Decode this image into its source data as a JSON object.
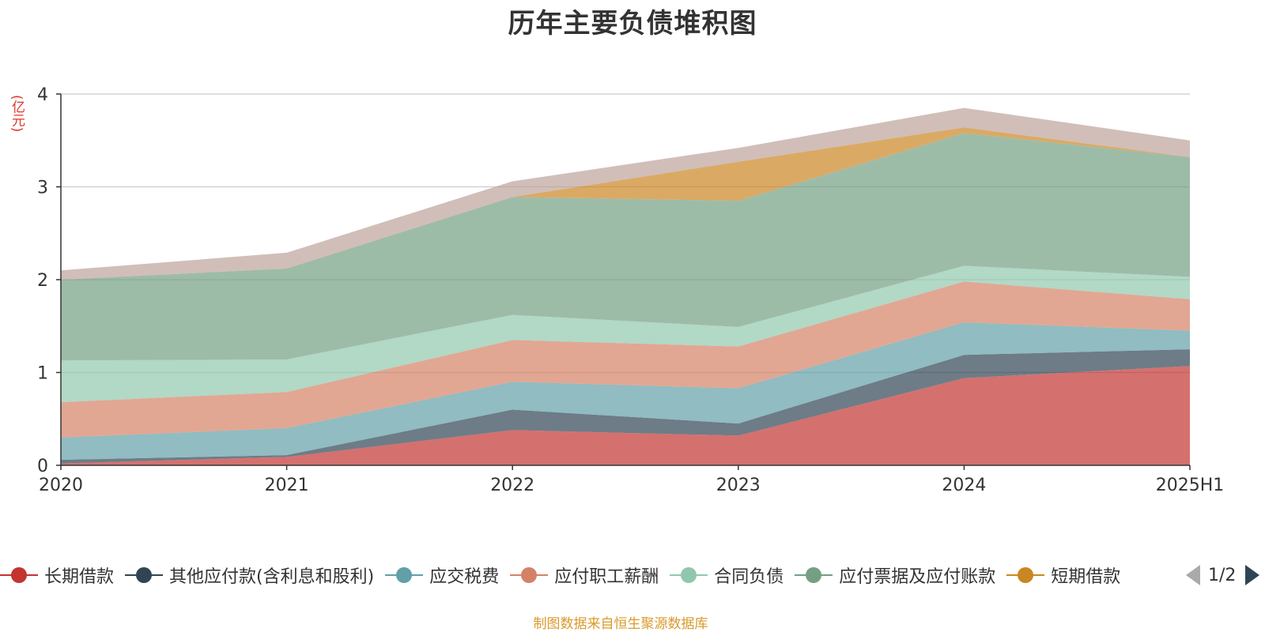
{
  "unit": "(亿元)",
  "source": "制图数据来自恒生聚源数据库",
  "pager": {
    "label": "1/2"
  },
  "chart_data": {
    "type": "area",
    "stacked": true,
    "title": "历年主要负债堆积图",
    "categories": [
      "2020",
      "2021",
      "2022",
      "2023",
      "2024",
      "2025H1"
    ],
    "ylim": [
      0,
      4
    ],
    "yticks": [
      "0",
      "1",
      "2",
      "3",
      "4"
    ],
    "grid": true,
    "legend_position": "bottom",
    "series": [
      {
        "name": "长期借款",
        "color": "#c23531",
        "values": [
          0.02,
          0.09,
          0.38,
          0.32,
          0.94,
          1.07
        ]
      },
      {
        "name": "其他应付款(含利息和股利)",
        "color": "#2f4554",
        "values": [
          0.04,
          0.02,
          0.22,
          0.13,
          0.25,
          0.18
        ]
      },
      {
        "name": "应交税费",
        "color": "#61a0a8",
        "values": [
          0.24,
          0.29,
          0.3,
          0.38,
          0.35,
          0.2
        ]
      },
      {
        "name": "应付职工薪酬",
        "color": "#d48265",
        "values": [
          0.38,
          0.39,
          0.45,
          0.45,
          0.44,
          0.34
        ]
      },
      {
        "name": "合同负债",
        "color": "#91c7ae",
        "values": [
          0.45,
          0.35,
          0.27,
          0.21,
          0.17,
          0.24
        ]
      },
      {
        "name": "应付票据及应付账款",
        "color": "#749f83",
        "values": [
          0.87,
          0.98,
          1.27,
          1.36,
          1.43,
          1.29
        ]
      },
      {
        "name": "短期借款",
        "color": "#ca8622",
        "values": [
          0.0,
          0.0,
          0.0,
          0.42,
          0.06,
          0.0
        ]
      },
      {
        "name": "",
        "color": "#bda29a",
        "values": [
          0.1,
          0.17,
          0.17,
          0.15,
          0.21,
          0.18
        ]
      }
    ]
  }
}
